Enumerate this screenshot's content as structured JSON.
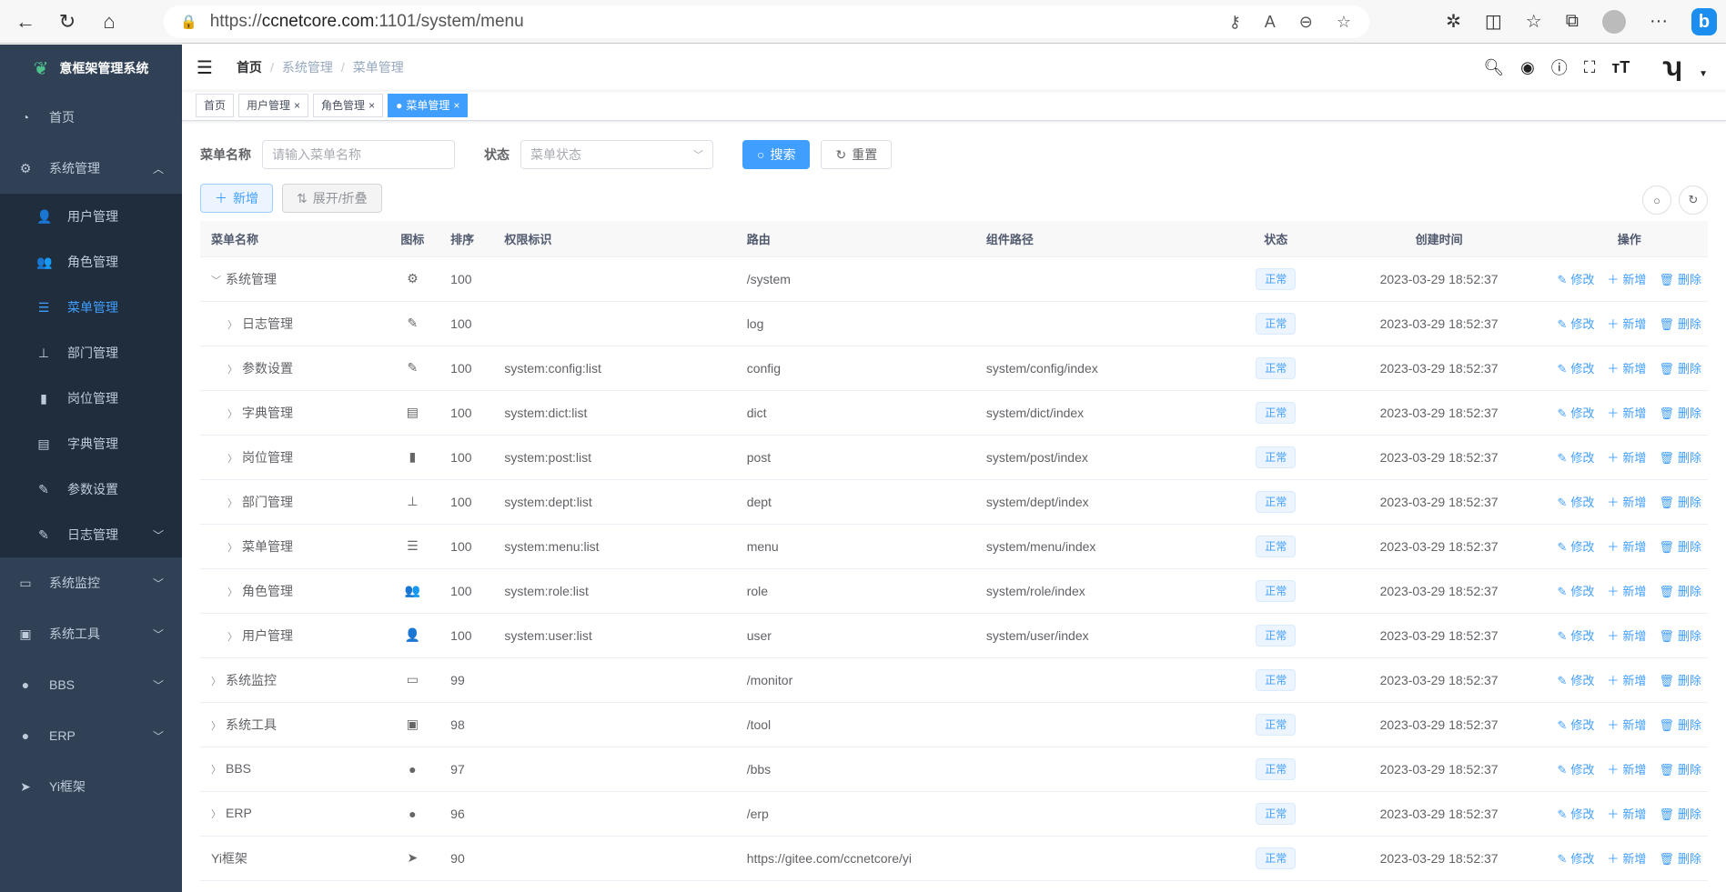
{
  "browser": {
    "url_scheme": "https://",
    "url_host": "ccnetcore.com",
    "url_rest": ":1101/system/menu",
    "bing": "b"
  },
  "app": {
    "title": "意框架管理系统"
  },
  "sidebar": {
    "items": [
      {
        "label": "首页",
        "icon": "dashboard-icon",
        "glyph": "◔"
      },
      {
        "label": "系统管理",
        "icon": "gear-icon",
        "glyph": "⚙",
        "expanded": true,
        "children": [
          {
            "label": "用户管理",
            "icon": "user-icon",
            "glyph": "👤"
          },
          {
            "label": "角色管理",
            "icon": "peoples-icon",
            "glyph": "👥"
          },
          {
            "label": "菜单管理",
            "icon": "tree-table-icon",
            "glyph": "☰",
            "active": true
          },
          {
            "label": "部门管理",
            "icon": "tree-icon",
            "glyph": "⊥"
          },
          {
            "label": "岗位管理",
            "icon": "post-icon",
            "glyph": "▮"
          },
          {
            "label": "字典管理",
            "icon": "dict-icon",
            "glyph": "▤"
          },
          {
            "label": "参数设置",
            "icon": "edit-icon",
            "glyph": "✎"
          },
          {
            "label": "日志管理",
            "icon": "log-icon",
            "glyph": "✎",
            "has_children": true
          }
        ]
      },
      {
        "label": "系统监控",
        "icon": "monitor-icon",
        "glyph": "▭",
        "has_children": true
      },
      {
        "label": "系统工具",
        "icon": "tool-icon",
        "glyph": "▣",
        "has_children": true
      },
      {
        "label": "BBS",
        "icon": "globe-icon",
        "glyph": "●",
        "has_children": true
      },
      {
        "label": "ERP",
        "icon": "globe-icon",
        "glyph": "●",
        "has_children": true
      },
      {
        "label": "Yi框架",
        "icon": "send-icon",
        "glyph": "➤"
      }
    ]
  },
  "breadcrumb": [
    "首页",
    "系统管理",
    "菜单管理"
  ],
  "tags": [
    {
      "label": "首页"
    },
    {
      "label": "用户管理",
      "closable": true
    },
    {
      "label": "角色管理",
      "closable": true
    },
    {
      "label": "菜单管理",
      "closable": true,
      "active": true
    }
  ],
  "search": {
    "name_label": "菜单名称",
    "name_placeholder": "请输入菜单名称",
    "name_value": "",
    "status_label": "状态",
    "status_placeholder": "菜单状态",
    "search_btn": "搜索",
    "reset_btn": "重置"
  },
  "toolbar": {
    "add": "新增",
    "expand": "展开/折叠"
  },
  "table": {
    "columns": [
      "菜单名称",
      "图标",
      "排序",
      "权限标识",
      "路由",
      "组件路径",
      "状态",
      "创建时间",
      "操作"
    ],
    "actions": [
      "修改",
      "新增",
      "删除"
    ],
    "rows": [
      {
        "name": "系统管理",
        "level": 0,
        "expand": "open",
        "icon": "gear-icon",
        "glyph": "⚙",
        "sort": "100",
        "perm": "",
        "route": "/system",
        "component": "",
        "status": "正常",
        "created": "2023-03-29 18:52:37"
      },
      {
        "name": "日志管理",
        "level": 1,
        "expand": "closed",
        "icon": "log-icon",
        "glyph": "✎",
        "sort": "100",
        "perm": "",
        "route": "log",
        "component": "",
        "status": "正常",
        "created": "2023-03-29 18:52:37"
      },
      {
        "name": "参数设置",
        "level": 1,
        "expand": "closed",
        "icon": "edit-icon",
        "glyph": "✎",
        "sort": "100",
        "perm": "system:config:list",
        "route": "config",
        "component": "system/config/index",
        "status": "正常",
        "created": "2023-03-29 18:52:37"
      },
      {
        "name": "字典管理",
        "level": 1,
        "expand": "closed",
        "icon": "dict-icon",
        "glyph": "▤",
        "sort": "100",
        "perm": "system:dict:list",
        "route": "dict",
        "component": "system/dict/index",
        "status": "正常",
        "created": "2023-03-29 18:52:37"
      },
      {
        "name": "岗位管理",
        "level": 1,
        "expand": "closed",
        "icon": "post-icon",
        "glyph": "▮",
        "sort": "100",
        "perm": "system:post:list",
        "route": "post",
        "component": "system/post/index",
        "status": "正常",
        "created": "2023-03-29 18:52:37"
      },
      {
        "name": "部门管理",
        "level": 1,
        "expand": "closed",
        "icon": "tree-icon",
        "glyph": "⊥",
        "sort": "100",
        "perm": "system:dept:list",
        "route": "dept",
        "component": "system/dept/index",
        "status": "正常",
        "created": "2023-03-29 18:52:37"
      },
      {
        "name": "菜单管理",
        "level": 1,
        "expand": "closed",
        "icon": "tree-table-icon",
        "glyph": "☰",
        "sort": "100",
        "perm": "system:menu:list",
        "route": "menu",
        "component": "system/menu/index",
        "status": "正常",
        "created": "2023-03-29 18:52:37"
      },
      {
        "name": "角色管理",
        "level": 1,
        "expand": "closed",
        "icon": "peoples-icon",
        "glyph": "👥",
        "sort": "100",
        "perm": "system:role:list",
        "route": "role",
        "component": "system/role/index",
        "status": "正常",
        "created": "2023-03-29 18:52:37"
      },
      {
        "name": "用户管理",
        "level": 1,
        "expand": "closed",
        "icon": "user-icon",
        "glyph": "👤",
        "sort": "100",
        "perm": "system:user:list",
        "route": "user",
        "component": "system/user/index",
        "status": "正常",
        "created": "2023-03-29 18:52:37"
      },
      {
        "name": "系统监控",
        "level": 0,
        "expand": "closed",
        "icon": "monitor-icon",
        "glyph": "▭",
        "sort": "99",
        "perm": "",
        "route": "/monitor",
        "component": "",
        "status": "正常",
        "created": "2023-03-29 18:52:37"
      },
      {
        "name": "系统工具",
        "level": 0,
        "expand": "closed",
        "icon": "tool-icon",
        "glyph": "▣",
        "sort": "98",
        "perm": "",
        "route": "/tool",
        "component": "",
        "status": "正常",
        "created": "2023-03-29 18:52:37"
      },
      {
        "name": "BBS",
        "level": 0,
        "expand": "closed",
        "icon": "globe-icon",
        "glyph": "●",
        "sort": "97",
        "perm": "",
        "route": "/bbs",
        "component": "",
        "status": "正常",
        "created": "2023-03-29 18:52:37"
      },
      {
        "name": "ERP",
        "level": 0,
        "expand": "closed",
        "icon": "globe-icon",
        "glyph": "●",
        "sort": "96",
        "perm": "",
        "route": "/erp",
        "component": "",
        "status": "正常",
        "created": "2023-03-29 18:52:37"
      },
      {
        "name": "Yi框架",
        "level": 0,
        "expand": "none",
        "icon": "send-icon",
        "glyph": "➤",
        "sort": "90",
        "perm": "",
        "route": "https://gitee.com/ccnetcore/yi",
        "component": "",
        "status": "正常",
        "created": "2023-03-29 18:52:37"
      }
    ]
  },
  "colors": {
    "sidebar": "#304156",
    "submenu": "#1f2d3d",
    "primary": "#409eff"
  }
}
